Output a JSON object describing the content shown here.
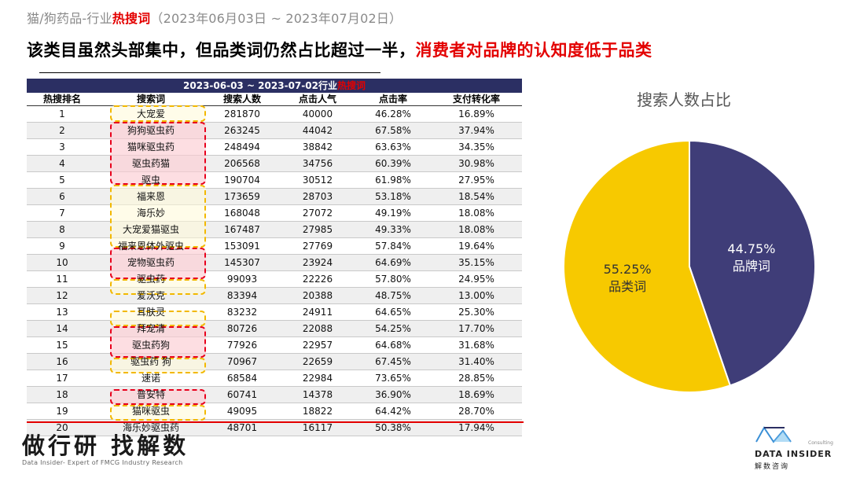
{
  "header": {
    "title_prefix": "猫/狗药品-行业",
    "title_hot": "热搜词",
    "title_suffix": "（2023年06月03日 ~ 2023年07月02日）",
    "headline_main": "该类目虽然头部集中，但品类词仍然占比超过一半，",
    "headline_red": "消费者对品牌的认知度低于品类"
  },
  "table": {
    "banner_prefix": "2023-06-03 ~ 2023-07-02行业",
    "banner_hot": "热搜词",
    "columns": [
      "热搜排名",
      "搜索词",
      "搜索人数",
      "点击人气",
      "点击率",
      "支付转化率"
    ],
    "rows": [
      [
        "1",
        "大宠爱",
        "281870",
        "40000",
        "46.28%",
        "16.89%"
      ],
      [
        "2",
        "狗狗驱虫药",
        "263245",
        "44042",
        "67.58%",
        "37.94%"
      ],
      [
        "3",
        "猫咪驱虫药",
        "248494",
        "38842",
        "63.63%",
        "34.35%"
      ],
      [
        "4",
        "驱虫药猫",
        "206568",
        "34756",
        "60.39%",
        "30.98%"
      ],
      [
        "5",
        "驱虫",
        "190704",
        "30512",
        "61.98%",
        "27.95%"
      ],
      [
        "6",
        "福来恩",
        "173659",
        "28703",
        "53.18%",
        "18.54%"
      ],
      [
        "7",
        "海乐妙",
        "168048",
        "27072",
        "49.19%",
        "18.08%"
      ],
      [
        "8",
        "大宠爱猫驱虫",
        "167487",
        "27985",
        "49.33%",
        "18.08%"
      ],
      [
        "9",
        "福来恩体外驱虫",
        "153091",
        "27769",
        "57.84%",
        "19.64%"
      ],
      [
        "10",
        "宠物驱虫药",
        "145307",
        "23924",
        "64.69%",
        "35.15%"
      ],
      [
        "11",
        "驱虫药",
        "99093",
        "22226",
        "57.80%",
        "24.95%"
      ],
      [
        "12",
        "爱沃克",
        "83394",
        "20388",
        "48.75%",
        "13.00%"
      ],
      [
        "13",
        "耳肤灵",
        "83232",
        "24911",
        "64.65%",
        "25.30%"
      ],
      [
        "14",
        "拜宠清",
        "80726",
        "22088",
        "54.25%",
        "17.70%"
      ],
      [
        "15",
        "驱虫药狗",
        "77926",
        "22957",
        "64.68%",
        "31.68%"
      ],
      [
        "16",
        "驱虫药 狗",
        "70967",
        "22659",
        "67.45%",
        "31.40%"
      ],
      [
        "17",
        "速诺",
        "68584",
        "22984",
        "73.65%",
        "28.85%"
      ],
      [
        "18",
        "普安特",
        "60741",
        "14378",
        "36.90%",
        "18.69%"
      ],
      [
        "19",
        "猫咪驱虫",
        "49095",
        "18822",
        "64.42%",
        "28.70%"
      ],
      [
        "20",
        "海乐妙驱虫药",
        "48701",
        "16117",
        "50.38%",
        "17.94%"
      ]
    ]
  },
  "chart_data": {
    "type": "pie",
    "title": "搜索人数占比",
    "slices": [
      {
        "label": "品牌词",
        "value": 44.75,
        "display": "44.75%",
        "color": "#3f3d78"
      },
      {
        "label": "品类词",
        "value": 55.25,
        "display": "55.25%",
        "color": "#f7c900"
      }
    ]
  },
  "footer": {
    "slogan": "做行研 找解数",
    "slogan_sub": "Data Insider- Expert of FMCG Industry Research",
    "logo_consult": "Consulting",
    "logo_text": "DATA INSIDER",
    "logo_cn": "解数咨询"
  }
}
